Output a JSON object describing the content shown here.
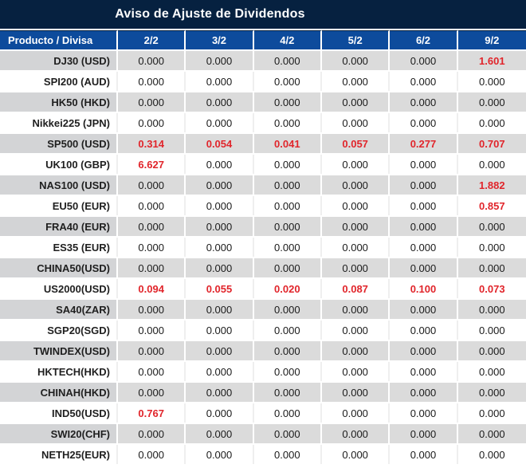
{
  "title": "Aviso de Ajuste de Dividendos",
  "colors": {
    "title_bar_bg": "#062140",
    "header_bg": "#0d4b9c",
    "row_gray": "#dbdbdb",
    "row_gray_product": "#d3d4d6",
    "row_white": "#ffffff",
    "value_text": "#1a1a1a",
    "highlight_red": "#e1252b"
  },
  "table": {
    "header": [
      "Producto / Divisa",
      "2/2",
      "3/2",
      "4/2",
      "5/2",
      "6/2",
      "9/2"
    ],
    "rows": [
      {
        "product": "DJ30 (USD)",
        "values": [
          "0.000",
          "0.000",
          "0.000",
          "0.000",
          "0.000",
          "1.601"
        ],
        "red": [
          5
        ]
      },
      {
        "product": "SPI200 (AUD)",
        "values": [
          "0.000",
          "0.000",
          "0.000",
          "0.000",
          "0.000",
          "0.000"
        ],
        "red": []
      },
      {
        "product": "HK50 (HKD)",
        "values": [
          "0.000",
          "0.000",
          "0.000",
          "0.000",
          "0.000",
          "0.000"
        ],
        "red": []
      },
      {
        "product": "Nikkei225 (JPN)",
        "values": [
          "0.000",
          "0.000",
          "0.000",
          "0.000",
          "0.000",
          "0.000"
        ],
        "red": []
      },
      {
        "product": "SP500 (USD)",
        "values": [
          "0.314",
          "0.054",
          "0.041",
          "0.057",
          "0.277",
          "0.707"
        ],
        "red": [
          0,
          1,
          2,
          3,
          4,
          5
        ]
      },
      {
        "product": "UK100 (GBP)",
        "values": [
          "6.627",
          "0.000",
          "0.000",
          "0.000",
          "0.000",
          "0.000"
        ],
        "red": [
          0
        ]
      },
      {
        "product": "NAS100 (USD)",
        "values": [
          "0.000",
          "0.000",
          "0.000",
          "0.000",
          "0.000",
          "1.882"
        ],
        "red": [
          5
        ]
      },
      {
        "product": "EU50 (EUR)",
        "values": [
          "0.000",
          "0.000",
          "0.000",
          "0.000",
          "0.000",
          "0.857"
        ],
        "red": [
          5
        ]
      },
      {
        "product": "FRA40 (EUR)",
        "values": [
          "0.000",
          "0.000",
          "0.000",
          "0.000",
          "0.000",
          "0.000"
        ],
        "red": []
      },
      {
        "product": "ES35 (EUR)",
        "values": [
          "0.000",
          "0.000",
          "0.000",
          "0.000",
          "0.000",
          "0.000"
        ],
        "red": []
      },
      {
        "product": "CHINA50(USD)",
        "values": [
          "0.000",
          "0.000",
          "0.000",
          "0.000",
          "0.000",
          "0.000"
        ],
        "red": []
      },
      {
        "product": "US2000(USD)",
        "values": [
          "0.094",
          "0.055",
          "0.020",
          "0.087",
          "0.100",
          "0.073"
        ],
        "red": [
          0,
          1,
          2,
          3,
          4,
          5
        ]
      },
      {
        "product": "SA40(ZAR)",
        "values": [
          "0.000",
          "0.000",
          "0.000",
          "0.000",
          "0.000",
          "0.000"
        ],
        "red": []
      },
      {
        "product": "SGP20(SGD)",
        "values": [
          "0.000",
          "0.000",
          "0.000",
          "0.000",
          "0.000",
          "0.000"
        ],
        "red": []
      },
      {
        "product": "TWINDEX(USD)",
        "values": [
          "0.000",
          "0.000",
          "0.000",
          "0.000",
          "0.000",
          "0.000"
        ],
        "red": []
      },
      {
        "product": "HKTECH(HKD)",
        "values": [
          "0.000",
          "0.000",
          "0.000",
          "0.000",
          "0.000",
          "0.000"
        ],
        "red": []
      },
      {
        "product": "CHINAH(HKD)",
        "values": [
          "0.000",
          "0.000",
          "0.000",
          "0.000",
          "0.000",
          "0.000"
        ],
        "red": []
      },
      {
        "product": "IND50(USD)",
        "values": [
          "0.767",
          "0.000",
          "0.000",
          "0.000",
          "0.000",
          "0.000"
        ],
        "red": [
          0
        ]
      },
      {
        "product": "SWI20(CHF)",
        "values": [
          "0.000",
          "0.000",
          "0.000",
          "0.000",
          "0.000",
          "0.000"
        ],
        "red": []
      },
      {
        "product": "NETH25(EUR)",
        "values": [
          "0.000",
          "0.000",
          "0.000",
          "0.000",
          "0.000",
          "0.000"
        ],
        "red": []
      }
    ]
  }
}
